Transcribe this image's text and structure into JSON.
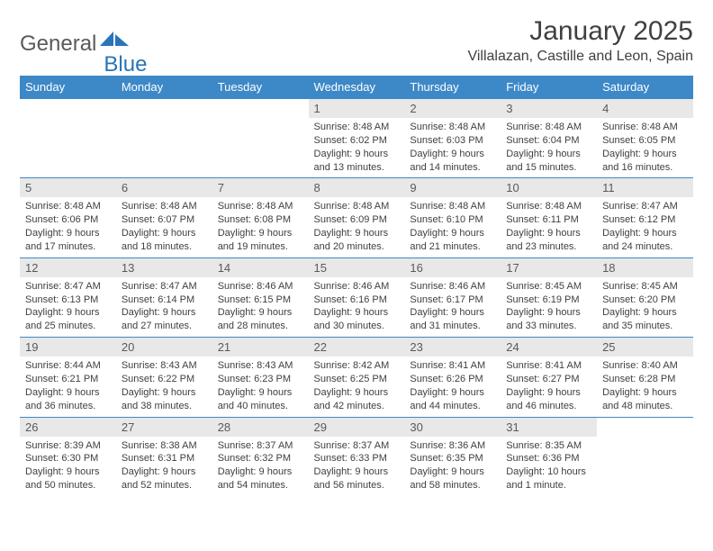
{
  "colors": {
    "header_bg": "#3d88c7",
    "header_text": "#ffffff",
    "daynum_bg": "#e8e8e8",
    "daynum_text": "#5a5a5a",
    "body_text": "#404040",
    "rule": "#3d88c7",
    "logo_gray": "#5a5a5a",
    "logo_blue": "#2a74b8"
  },
  "logo": {
    "part1": "General",
    "part2": "Blue"
  },
  "title": "January 2025",
  "location": "Villalazan, Castille and Leon, Spain",
  "weekdays": [
    "Sunday",
    "Monday",
    "Tuesday",
    "Wednesday",
    "Thursday",
    "Friday",
    "Saturday"
  ],
  "weeks": [
    [
      {
        "blank": true
      },
      {
        "blank": true
      },
      {
        "blank": true
      },
      {
        "n": "1",
        "sr": "8:48 AM",
        "ss": "6:02 PM",
        "dl": "9 hours and 13 minutes."
      },
      {
        "n": "2",
        "sr": "8:48 AM",
        "ss": "6:03 PM",
        "dl": "9 hours and 14 minutes."
      },
      {
        "n": "3",
        "sr": "8:48 AM",
        "ss": "6:04 PM",
        "dl": "9 hours and 15 minutes."
      },
      {
        "n": "4",
        "sr": "8:48 AM",
        "ss": "6:05 PM",
        "dl": "9 hours and 16 minutes."
      }
    ],
    [
      {
        "n": "5",
        "sr": "8:48 AM",
        "ss": "6:06 PM",
        "dl": "9 hours and 17 minutes."
      },
      {
        "n": "6",
        "sr": "8:48 AM",
        "ss": "6:07 PM",
        "dl": "9 hours and 18 minutes."
      },
      {
        "n": "7",
        "sr": "8:48 AM",
        "ss": "6:08 PM",
        "dl": "9 hours and 19 minutes."
      },
      {
        "n": "8",
        "sr": "8:48 AM",
        "ss": "6:09 PM",
        "dl": "9 hours and 20 minutes."
      },
      {
        "n": "9",
        "sr": "8:48 AM",
        "ss": "6:10 PM",
        "dl": "9 hours and 21 minutes."
      },
      {
        "n": "10",
        "sr": "8:48 AM",
        "ss": "6:11 PM",
        "dl": "9 hours and 23 minutes."
      },
      {
        "n": "11",
        "sr": "8:47 AM",
        "ss": "6:12 PM",
        "dl": "9 hours and 24 minutes."
      }
    ],
    [
      {
        "n": "12",
        "sr": "8:47 AM",
        "ss": "6:13 PM",
        "dl": "9 hours and 25 minutes."
      },
      {
        "n": "13",
        "sr": "8:47 AM",
        "ss": "6:14 PM",
        "dl": "9 hours and 27 minutes."
      },
      {
        "n": "14",
        "sr": "8:46 AM",
        "ss": "6:15 PM",
        "dl": "9 hours and 28 minutes."
      },
      {
        "n": "15",
        "sr": "8:46 AM",
        "ss": "6:16 PM",
        "dl": "9 hours and 30 minutes."
      },
      {
        "n": "16",
        "sr": "8:46 AM",
        "ss": "6:17 PM",
        "dl": "9 hours and 31 minutes."
      },
      {
        "n": "17",
        "sr": "8:45 AM",
        "ss": "6:19 PM",
        "dl": "9 hours and 33 minutes."
      },
      {
        "n": "18",
        "sr": "8:45 AM",
        "ss": "6:20 PM",
        "dl": "9 hours and 35 minutes."
      }
    ],
    [
      {
        "n": "19",
        "sr": "8:44 AM",
        "ss": "6:21 PM",
        "dl": "9 hours and 36 minutes."
      },
      {
        "n": "20",
        "sr": "8:43 AM",
        "ss": "6:22 PM",
        "dl": "9 hours and 38 minutes."
      },
      {
        "n": "21",
        "sr": "8:43 AM",
        "ss": "6:23 PM",
        "dl": "9 hours and 40 minutes."
      },
      {
        "n": "22",
        "sr": "8:42 AM",
        "ss": "6:25 PM",
        "dl": "9 hours and 42 minutes."
      },
      {
        "n": "23",
        "sr": "8:41 AM",
        "ss": "6:26 PM",
        "dl": "9 hours and 44 minutes."
      },
      {
        "n": "24",
        "sr": "8:41 AM",
        "ss": "6:27 PM",
        "dl": "9 hours and 46 minutes."
      },
      {
        "n": "25",
        "sr": "8:40 AM",
        "ss": "6:28 PM",
        "dl": "9 hours and 48 minutes."
      }
    ],
    [
      {
        "n": "26",
        "sr": "8:39 AM",
        "ss": "6:30 PM",
        "dl": "9 hours and 50 minutes."
      },
      {
        "n": "27",
        "sr": "8:38 AM",
        "ss": "6:31 PM",
        "dl": "9 hours and 52 minutes."
      },
      {
        "n": "28",
        "sr": "8:37 AM",
        "ss": "6:32 PM",
        "dl": "9 hours and 54 minutes."
      },
      {
        "n": "29",
        "sr": "8:37 AM",
        "ss": "6:33 PM",
        "dl": "9 hours and 56 minutes."
      },
      {
        "n": "30",
        "sr": "8:36 AM",
        "ss": "6:35 PM",
        "dl": "9 hours and 58 minutes."
      },
      {
        "n": "31",
        "sr": "8:35 AM",
        "ss": "6:36 PM",
        "dl": "10 hours and 1 minute."
      },
      {
        "blank": true
      }
    ]
  ],
  "labels": {
    "sunrise": "Sunrise:",
    "sunset": "Sunset:",
    "daylight": "Daylight:"
  }
}
